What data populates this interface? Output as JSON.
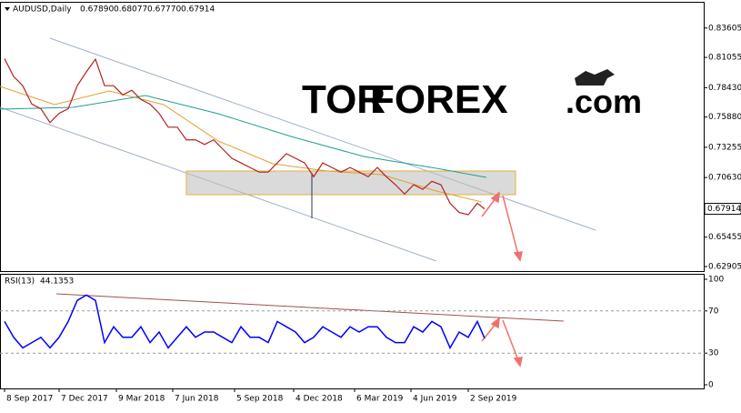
{
  "chart_data": [
    {
      "type": "line",
      "title": "AUDUSD,Daily",
      "ohlc": [
        {
          "value": 0.6789,
          "label": "0.67890"
        },
        0.68077,
        {
          "value": 0.6777,
          "label": "0.67770"
        },
        0.67914
      ],
      "watermark": [
        "TOR",
        "FOREX",
        ".com"
      ],
      "last_price": 0.67914,
      "xlim": [
        -5,
        770
      ],
      "ylim": [
        0.6251,
        0.8588
      ],
      "yticks": [
        0.83605,
        0.81055,
        {
          "value": 0.7843,
          "label": "0.78430"
        },
        {
          "value": 0.7588,
          "label": "0.75880"
        },
        0.73255,
        {
          "value": 0.7063,
          "label": "0.70630"
        },
        0.65455,
        0.62905
      ],
      "series": [
        {
          "color": "#b22222",
          "x": [
            0,
            10,
            20,
            30,
            40,
            50,
            60,
            70,
            80,
            90,
            100,
            110,
            120,
            130,
            140,
            150,
            160,
            170,
            180,
            190,
            200,
            210,
            220,
            230,
            240,
            250,
            260,
            270,
            280,
            290,
            300,
            310,
            320,
            330,
            340,
            350,
            360,
            370,
            380,
            390,
            400,
            410,
            420,
            430,
            440,
            450,
            460,
            470,
            480,
            490,
            500,
            510,
            520,
            528
          ],
          "values": [
            0.8094,
            0.794,
            0.786,
            0.77,
            0.766,
            0.754,
            0.762,
            0.766,
            0.786,
            0.798,
            0.809,
            0.786,
            0.786,
            0.778,
            0.782,
            0.774,
            0.77,
            0.762,
            0.75,
            0.75,
            0.739,
            0.739,
            0.735,
            0.739,
            0.731,
            0.723,
            0.719,
            0.715,
            0.711,
            0.711,
            0.719,
            0.727,
            0.723,
            0.719,
            0.707,
            0.719,
            0.715,
            0.711,
            0.715,
            0.711,
            0.707,
            0.715,
            0.707,
            0.7,
            0.692,
            0.7,
            0.696,
            0.703,
            0.7,
            0.684,
            0.676,
            0.674,
            0.684,
            0.6791
          ]
        }
      ]
    },
    {
      "type": "line",
      "title": "RSI(13)",
      "last_value": 44.1353,
      "xlim": [
        -5,
        770
      ],
      "ylim": [
        -4.3,
        104.3
      ],
      "yticks": [
        100,
        70,
        30,
        0
      ],
      "xticks": [
        {
          "value": 0,
          "label": "8 Sep 2017"
        },
        {
          "value": 60,
          "label": "7 Dec 2017"
        },
        {
          "value": 123,
          "label": "9 Mar 2018"
        },
        {
          "value": 185,
          "label": "7 Jun 2018"
        },
        {
          "value": 253,
          "label": "5 Sep 2018"
        },
        {
          "value": 318,
          "label": "4 Dec 2018"
        },
        {
          "value": 385,
          "label": "6 Mar 2019"
        },
        {
          "value": 447,
          "label": "4 Jun 2019"
        },
        {
          "value": 510,
          "label": "2 Sep 2019"
        }
      ],
      "series": [
        {
          "color": "#0000ff",
          "x": [
            0,
            10,
            20,
            30,
            40,
            50,
            60,
            70,
            80,
            90,
            100,
            110,
            120,
            130,
            140,
            150,
            160,
            170,
            180,
            190,
            200,
            210,
            220,
            230,
            240,
            250,
            260,
            270,
            280,
            290,
            300,
            310,
            320,
            330,
            340,
            350,
            360,
            370,
            380,
            390,
            400,
            410,
            420,
            430,
            440,
            450,
            460,
            470,
            480,
            490,
            500,
            510,
            520,
            528
          ],
          "values": [
            60,
            45,
            35,
            40,
            45,
            35,
            45,
            60,
            80,
            85,
            80,
            40,
            55,
            45,
            45,
            55,
            40,
            50,
            35,
            45,
            55,
            45,
            50,
            50,
            45,
            40,
            55,
            45,
            45,
            40,
            60,
            55,
            50,
            40,
            45,
            55,
            50,
            45,
            55,
            50,
            55,
            55,
            45,
            40,
            40,
            55,
            50,
            60,
            55,
            35,
            50,
            45,
            60,
            44
          ]
        }
      ]
    }
  ]
}
